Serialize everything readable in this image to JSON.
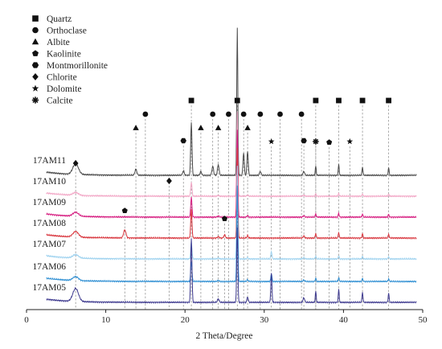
{
  "chart_data": {
    "type": "line",
    "xlabel": "2 Theta/Degree",
    "ylabel": "",
    "xlim": [
      0,
      50
    ],
    "xticks": [
      0,
      10,
      20,
      30,
      40,
      50
    ],
    "legend": {
      "placement": "top-left",
      "entries": [
        {
          "name": "Quartz",
          "symbol": "square"
        },
        {
          "name": "Orthoclase",
          "symbol": "circle"
        },
        {
          "name": "Albite",
          "symbol": "triangle"
        },
        {
          "name": "Kaolinite",
          "symbol": "pentagon"
        },
        {
          "name": "Montmorillonite",
          "symbol": "hexagon"
        },
        {
          "name": "Chlorite",
          "symbol": "diamond"
        },
        {
          "name": "Dolomite",
          "symbol": "star"
        },
        {
          "name": "Calcite",
          "symbol": "asterisk"
        }
      ]
    },
    "series": [
      {
        "name": "17AM11",
        "color": "#4a4a4a"
      },
      {
        "name": "17AM10",
        "color": "#f2a7c6"
      },
      {
        "name": "17AM09",
        "color": "#d5197e"
      },
      {
        "name": "17AM08",
        "color": "#d8343c"
      },
      {
        "name": "17AM07",
        "color": "#9ed2ef"
      },
      {
        "name": "17AM06",
        "color": "#2f8fd3"
      },
      {
        "name": "17AM05",
        "color": "#3e3a8f"
      }
    ],
    "reference_lines": [
      {
        "x": 6.2,
        "symbol": "diamond",
        "mineral": "Chlorite"
      },
      {
        "x": 12.4,
        "symbol": "pentagon",
        "mineral": "Kaolinite"
      },
      {
        "x": 13.8,
        "symbol": "triangle",
        "mineral": "Albite"
      },
      {
        "x": 15.0,
        "symbol": "circle",
        "mineral": "Orthoclase"
      },
      {
        "x": 18.0,
        "symbol": "diamond",
        "mineral": "Chlorite"
      },
      {
        "x": 19.8,
        "symbol": "hexagon",
        "mineral": "Montmorillonite"
      },
      {
        "x": 20.8,
        "symbol": "square",
        "mineral": "Quartz"
      },
      {
        "x": 22.0,
        "symbol": "triangle",
        "mineral": "Albite"
      },
      {
        "x": 23.5,
        "symbol": "circle",
        "mineral": "Orthoclase"
      },
      {
        "x": 24.2,
        "symbol": "triangle",
        "mineral": "Albite"
      },
      {
        "x": 25.0,
        "symbol": "pentagon",
        "mineral": "Kaolinite"
      },
      {
        "x": 25.5,
        "symbol": "circle",
        "mineral": "Orthoclase"
      },
      {
        "x": 26.6,
        "symbol": "square",
        "mineral": "Quartz"
      },
      {
        "x": 27.4,
        "symbol": "circle",
        "mineral": "Orthoclase"
      },
      {
        "x": 27.9,
        "symbol": "triangle",
        "mineral": "Albite"
      },
      {
        "x": 29.5,
        "symbol": "circle",
        "mineral": "Orthoclase"
      },
      {
        "x": 30.9,
        "symbol": "star",
        "mineral": "Dolomite"
      },
      {
        "x": 32.0,
        "symbol": "circle",
        "mineral": "Orthoclase"
      },
      {
        "x": 34.7,
        "symbol": "circle",
        "mineral": "Orthoclase"
      },
      {
        "x": 35.0,
        "symbol": "hexagon",
        "mineral": "Montmorillonite"
      },
      {
        "x": 36.5,
        "symbol": "square",
        "mineral": "Quartz"
      },
      {
        "x": 36.5,
        "symbol": "asterisk",
        "mineral": "Calcite"
      },
      {
        "x": 38.2,
        "symbol": "pentagon",
        "mineral": "Kaolinite"
      },
      {
        "x": 39.4,
        "symbol": "square",
        "mineral": "Quartz"
      },
      {
        "x": 40.8,
        "symbol": "star",
        "mineral": "Dolomite"
      },
      {
        "x": 42.4,
        "symbol": "square",
        "mineral": "Quartz"
      },
      {
        "x": 45.7,
        "symbol": "square",
        "mineral": "Quartz"
      }
    ]
  }
}
